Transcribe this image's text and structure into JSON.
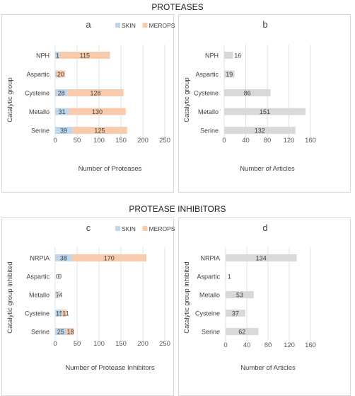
{
  "sections": {
    "top_title": "PROTEASES",
    "bottom_title": "PROTEASE INHIBITORS"
  },
  "colors": {
    "skin": "#bdd7ee",
    "merops": "#f8cbad",
    "articles": "#d9d9d9",
    "grid": "#e0e0e0"
  },
  "chart_data": [
    {
      "id": "a",
      "type": "bar",
      "orientation": "horizontal",
      "stacked": true,
      "panel_letter": "a",
      "title": "",
      "xlabel": "Number of Proteases",
      "ylabel": "Catalytic group",
      "categories": [
        "NPH",
        "Aspartic",
        "Cysteine",
        "Metallo",
        "Serine"
      ],
      "series": [
        {
          "name": "SKIN",
          "color": "#bdd7ee",
          "values": [
            10,
            3,
            28,
            31,
            39
          ],
          "labels": [
            "10",
            "3",
            "28",
            "31",
            "39"
          ]
        },
        {
          "name": "MEROPS",
          "color": "#f8cbad",
          "values": [
            115,
            20,
            128,
            130,
            125
          ],
          "labels": [
            "115",
            "20",
            "128",
            "130",
            "125"
          ]
        }
      ],
      "xlim": [
        0,
        250
      ],
      "xticks": [
        0,
        50,
        100,
        150,
        200,
        250
      ],
      "grid": true,
      "legend": "top-right"
    },
    {
      "id": "b",
      "type": "bar",
      "orientation": "horizontal",
      "stacked": false,
      "panel_letter": "b",
      "title": "",
      "xlabel": "Number of Articles",
      "ylabel": "Catalytic group",
      "categories": [
        "NPH",
        "Aspartic",
        "Cysteine",
        "Metallo",
        "Serine"
      ],
      "series": [
        {
          "name": "",
          "color": "#d9d9d9",
          "values": [
            16,
            19,
            86,
            151,
            132
          ],
          "labels": [
            "16",
            "19",
            "86",
            "151",
            "132"
          ]
        }
      ],
      "xlim": [
        0,
        160
      ],
      "xticks": [
        0,
        40,
        80,
        120,
        160
      ],
      "grid": true,
      "legend": "none"
    },
    {
      "id": "c",
      "type": "bar",
      "orientation": "horizontal",
      "stacked": true,
      "panel_letter": "c",
      "title": "",
      "xlabel": "Number of Protease Inhibitors",
      "ylabel": "Catalytic group inhibited",
      "categories": [
        "NRPIA",
        "Aspartic",
        "Metallo",
        "Cysteine",
        "Serine"
      ],
      "series": [
        {
          "name": "SKIN",
          "color": "#bdd7ee",
          "values": [
            38,
            0,
            7,
            15,
            25
          ],
          "labels": [
            "38",
            "0",
            "7",
            "15",
            "25"
          ]
        },
        {
          "name": "MEROPS",
          "color": "#f8cbad",
          "values": [
            170,
            0,
            4,
            11,
            18
          ],
          "labels": [
            "170",
            "0",
            "4",
            "11",
            "18"
          ]
        }
      ],
      "xlim": [
        0,
        250
      ],
      "xticks": [
        0,
        50,
        100,
        150,
        200,
        250
      ],
      "grid": true,
      "legend": "top-right"
    },
    {
      "id": "d",
      "type": "bar",
      "orientation": "horizontal",
      "stacked": false,
      "panel_letter": "d",
      "title": "",
      "xlabel": "Number of Articles",
      "ylabel": "Catalytic group inhibited",
      "categories": [
        "NRPIA",
        "Aspartic",
        "Metallo",
        "Cysteine",
        "Serine"
      ],
      "series": [
        {
          "name": "",
          "color": "#d9d9d9",
          "values": [
            134,
            1,
            53,
            37,
            62
          ],
          "labels": [
            "134",
            "1",
            "53",
            "37",
            "62"
          ]
        }
      ],
      "xlim": [
        0,
        160
      ],
      "xticks": [
        0,
        40,
        80,
        120,
        160
      ],
      "grid": true,
      "legend": "none"
    }
  ]
}
